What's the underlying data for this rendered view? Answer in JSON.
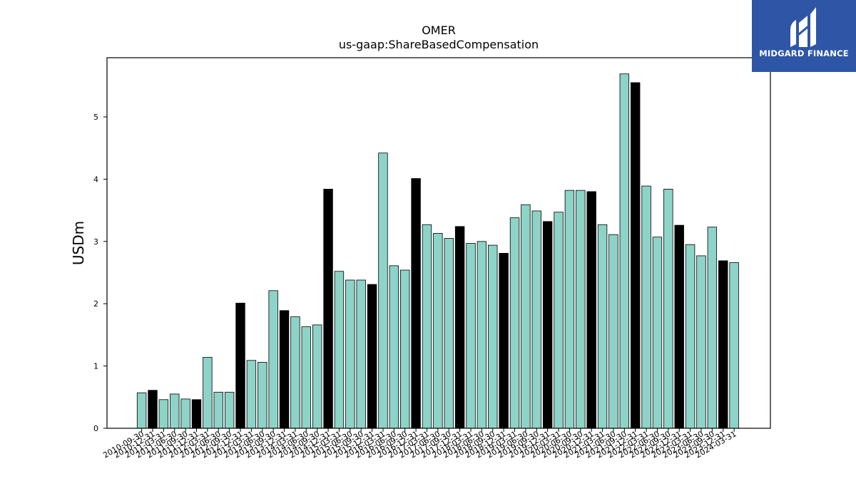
{
  "brand": {
    "name": "MIDGARD FINANCE",
    "bg_color": "#2f56a6"
  },
  "colors": {
    "bar_default": "#8dd3c7",
    "bar_highlight": "#000000",
    "edge": "#000000"
  },
  "chart_data": {
    "type": "bar",
    "title": "OMER",
    "subtitle": "us-gaap:ShareBasedCompensation",
    "xlabel": "",
    "ylabel": "USDm",
    "ylim": [
      0,
      5.95
    ],
    "yticks": [
      0,
      1,
      2,
      3,
      4,
      5
    ],
    "grid": false,
    "legend": "none",
    "categories": [
      "2010-09-30",
      "2010-12-31",
      "2011-03-31",
      "2011-06-30",
      "2011-09-30",
      "2011-12-31",
      "2012-03-31",
      "2012-06-30",
      "2012-09-30",
      "2012-12-31",
      "2013-03-31",
      "2013-06-30",
      "2013-09-30",
      "2013-12-31",
      "2014-03-31",
      "2014-06-30",
      "2014-09-30",
      "2014-12-31",
      "2015-03-31",
      "2015-06-30",
      "2015-09-30",
      "2015-12-31",
      "2016-03-31",
      "2016-06-30",
      "2016-09-30",
      "2016-12-31",
      "2017-03-31",
      "2017-06-30",
      "2017-09-30",
      "2017-12-31",
      "2018-03-31",
      "2018-06-30",
      "2018-09-30",
      "2018-12-31",
      "2019-03-31",
      "2019-06-30",
      "2019-09-30",
      "2019-12-31",
      "2020-03-31",
      "2020-06-30",
      "2020-09-30",
      "2020-12-31",
      "2021-03-31",
      "2021-06-30",
      "2021-09-30",
      "2021-12-31",
      "2022-03-31",
      "2022-06-30",
      "2022-09-30",
      "2022-12-31",
      "2023-03-31",
      "2023-06-30",
      "2023-09-30",
      "2023-12-31",
      "2024-03-31"
    ],
    "values": [
      0.57,
      0.61,
      0.46,
      0.55,
      0.47,
      0.46,
      1.14,
      0.58,
      0.58,
      2.01,
      1.09,
      1.06,
      2.21,
      1.89,
      1.79,
      1.63,
      1.66,
      3.84,
      2.52,
      2.38,
      2.38,
      2.31,
      4.42,
      2.61,
      2.54,
      4.01,
      3.27,
      3.13,
      3.05,
      3.24,
      2.97,
      3.0,
      2.94,
      2.81,
      3.38,
      3.59,
      3.49,
      3.32,
      3.47,
      3.82,
      3.82,
      3.8,
      3.27,
      3.11,
      5.69,
      5.55,
      3.89,
      3.07,
      3.84,
      3.26,
      2.95,
      2.77,
      3.23,
      2.69,
      2.66
    ],
    "highlight": [
      false,
      true,
      false,
      false,
      false,
      true,
      false,
      false,
      false,
      true,
      false,
      false,
      false,
      true,
      false,
      false,
      false,
      true,
      false,
      false,
      false,
      true,
      false,
      false,
      false,
      true,
      false,
      false,
      false,
      true,
      false,
      false,
      false,
      true,
      false,
      false,
      false,
      true,
      false,
      false,
      false,
      true,
      false,
      false,
      false,
      true,
      false,
      false,
      false,
      true,
      false,
      false,
      false,
      true,
      false
    ]
  }
}
